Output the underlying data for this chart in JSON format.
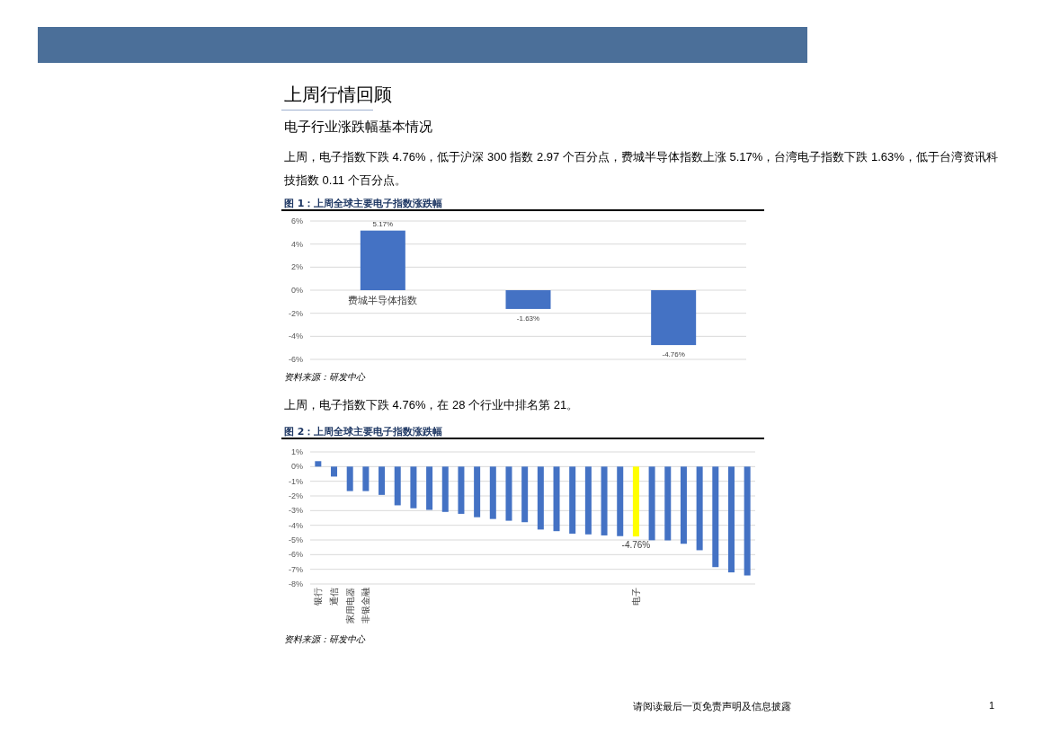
{
  "chart_data": [
    {
      "type": "bar",
      "title": "图 1：上周全球主要电子指数涨跌幅",
      "annotations": [
        "上周行情回顾",
        "电子行业涨跌幅基本情况",
        "上周，电子指数下跌 4.76%，低于沪深 300 指数 2.97 个百分点，费城半导体指数上涨 5.17%，台湾电子指数下跌 1.63%，低于台湾资讯科技指数 0.11 个百分点。",
        "资料来源：研发中心"
      ],
      "categories": [
        "费城半导体指数",
        null,
        null
      ],
      "values": [
        5.17,
        -1.63,
        -4.76
      ],
      "value_labels": [
        "5.17%",
        "-1.63%",
        "-4.76%"
      ],
      "color": "#4472c4",
      "ylim": [
        -6,
        6
      ],
      "yticks": [
        {
          "value": -6,
          "label": "-6%"
        },
        {
          "value": -4,
          "label": "-4%"
        },
        {
          "value": -2,
          "label": "-2%"
        },
        {
          "value": 0,
          "label": "0%"
        },
        {
          "value": 2,
          "label": "2%"
        },
        {
          "value": 4,
          "label": "4%"
        },
        {
          "value": 6,
          "label": "6%"
        }
      ],
      "grid": "y"
    },
    {
      "type": "bar",
      "title": "图 2：上周全球主要电子指数涨跌幅",
      "annotations": [
        "上周，电子指数下跌 4.76%，在 28 个行业中排名第 21。",
        "资料来源：研发中心",
        "请阅读最后一页免责声明及信息披露",
        "1"
      ],
      "categories": [
        "银行",
        "通信",
        "家用电器",
        "非银金融",
        null,
        null,
        null,
        null,
        null,
        null,
        null,
        null,
        null,
        null,
        null,
        null,
        null,
        null,
        null,
        null,
        "电子",
        null,
        null,
        null,
        null,
        null,
        null,
        null
      ],
      "values": [
        0.37,
        -0.68,
        -1.67,
        -1.67,
        -1.93,
        -2.64,
        -2.84,
        -2.95,
        -3.09,
        -3.22,
        -3.45,
        -3.57,
        -3.69,
        -3.79,
        -4.29,
        -4.4,
        -4.57,
        -4.62,
        -4.69,
        -4.74,
        -4.76,
        -5.02,
        -5.03,
        -5.26,
        -5.7,
        -6.85,
        -7.21,
        -7.42
      ],
      "colors": [
        "#4472c4",
        "#4472c4",
        "#4472c4",
        "#4472c4",
        "#4472c4",
        "#4472c4",
        "#4472c4",
        "#4472c4",
        "#4472c4",
        "#4472c4",
        "#4472c4",
        "#4472c4",
        "#4472c4",
        "#4472c4",
        "#4472c4",
        "#4472c4",
        "#4472c4",
        "#4472c4",
        "#4472c4",
        "#4472c4",
        "#ffff00",
        "#4472c4",
        "#4472c4",
        "#4472c4",
        "#4472c4",
        "#4472c4",
        "#4472c4",
        "#4472c4"
      ],
      "value_labels": [
        null,
        null,
        null,
        null,
        null,
        null,
        null,
        null,
        null,
        null,
        null,
        null,
        null,
        null,
        null,
        null,
        null,
        null,
        null,
        null,
        "-4.76%",
        null,
        null,
        null,
        null,
        null,
        null,
        null
      ],
      "ylim": [
        -8,
        1
      ],
      "yticks": [
        {
          "value": -8,
          "label": "-8%"
        },
        {
          "value": -7,
          "label": "-7%"
        },
        {
          "value": -6,
          "label": "-6%"
        },
        {
          "value": -5,
          "label": "-5%"
        },
        {
          "value": -4,
          "label": "-4%"
        },
        {
          "value": -3,
          "label": "-3%"
        },
        {
          "value": -2,
          "label": "-2%"
        },
        {
          "value": -1,
          "label": "-1%"
        },
        {
          "value": 0,
          "label": "0%"
        },
        {
          "value": 1,
          "label": "1%"
        }
      ],
      "grid": "y"
    }
  ]
}
